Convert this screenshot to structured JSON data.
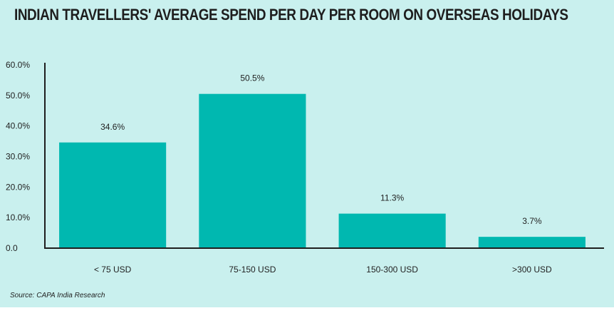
{
  "title": "INDIAN TRAVELLERS' AVERAGE SPEND PER DAY PER ROOM ON OVERSEAS HOLIDAYS",
  "source": "Source: CAPA India Research",
  "colors": {
    "background": "#c9f0ee",
    "bar": "#00b8b0",
    "axis": "#1e1e1e",
    "text": "#222222"
  },
  "chart_data": {
    "type": "bar",
    "title": "INDIAN TRAVELLERS' AVERAGE SPEND PER DAY PER ROOM ON OVERSEAS HOLIDAYS",
    "categories": [
      "< 75 USD",
      "75-150 USD",
      "150-300 USD",
      ">300 USD"
    ],
    "values": [
      34.6,
      50.5,
      11.3,
      3.7
    ],
    "data_labels": [
      "34.6%",
      "50.5%",
      "11.3%",
      "3.7%"
    ],
    "y_ticks": [
      "0.0",
      "10.0%",
      "20.0%",
      "30.0%",
      "40.0%",
      "50.0%",
      "60.0%"
    ],
    "ylim": [
      0,
      60
    ],
    "xlabel": "",
    "ylabel": "",
    "grid": false,
    "legend": "none"
  }
}
